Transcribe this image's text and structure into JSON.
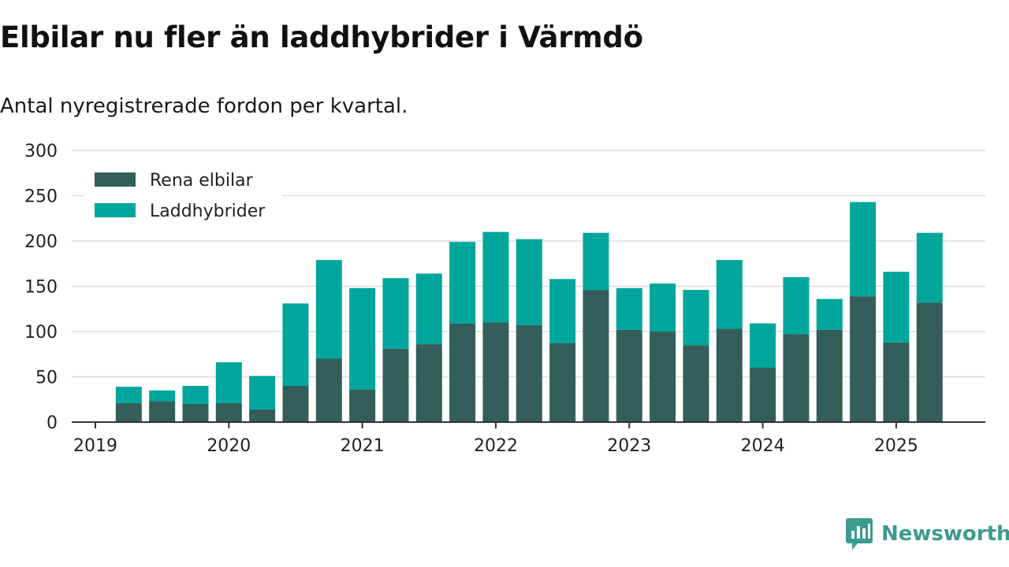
{
  "title": "Elbilar nu fler än laddhybrider i Värmdö",
  "subtitle": "Antal nyregistrerade fordon per kvartal.",
  "brand": {
    "name": "Newsworthy",
    "icon": "newsworthy-logo-icon"
  },
  "colors": {
    "rena_elbilar": "#335e5a",
    "laddhybrider": "#00a69c",
    "gridline": "#dddddd",
    "axis": "#333333",
    "brand": "#3d9a91"
  },
  "chart_data": {
    "type": "bar",
    "stacked": true,
    "title": "Elbilar nu fler än laddhybrider i Värmdö",
    "subtitle": "Antal nyregistrerade fordon per kvartal.",
    "xlabel": "",
    "ylabel": "",
    "ylim": [
      0,
      300
    ],
    "yticks": [
      0,
      50,
      100,
      150,
      200,
      250,
      300
    ],
    "xticks": [
      "2019",
      "2020",
      "2021",
      "2022",
      "2023",
      "2024",
      "2025"
    ],
    "grid": true,
    "legend": "top-left",
    "categories": [
      "2019 Q2",
      "2019 Q3",
      "2019 Q4",
      "2020 Q1",
      "2020 Q2",
      "2020 Q3",
      "2020 Q4",
      "2021 Q1",
      "2021 Q2",
      "2021 Q3",
      "2021 Q4",
      "2022 Q1",
      "2022 Q2",
      "2022 Q3",
      "2022 Q4",
      "2023 Q1",
      "2023 Q2",
      "2023 Q3",
      "2023 Q4",
      "2024 Q1",
      "2024 Q2",
      "2024 Q3",
      "2024 Q4",
      "2025 Q1",
      "2025 Q2"
    ],
    "series": [
      {
        "name": "Rena elbilar",
        "values": [
          21,
          23,
          20,
          21,
          14,
          40,
          70,
          36,
          81,
          86,
          109,
          110,
          107,
          87,
          146,
          102,
          100,
          85,
          103,
          60,
          97,
          102,
          139,
          88,
          132
        ]
      },
      {
        "name": "Laddhybrider",
        "values": [
          18,
          12,
          20,
          45,
          37,
          91,
          109,
          112,
          78,
          78,
          90,
          100,
          95,
          71,
          63,
          46,
          53,
          61,
          76,
          49,
          63,
          34,
          104,
          78,
          77
        ]
      }
    ]
  }
}
